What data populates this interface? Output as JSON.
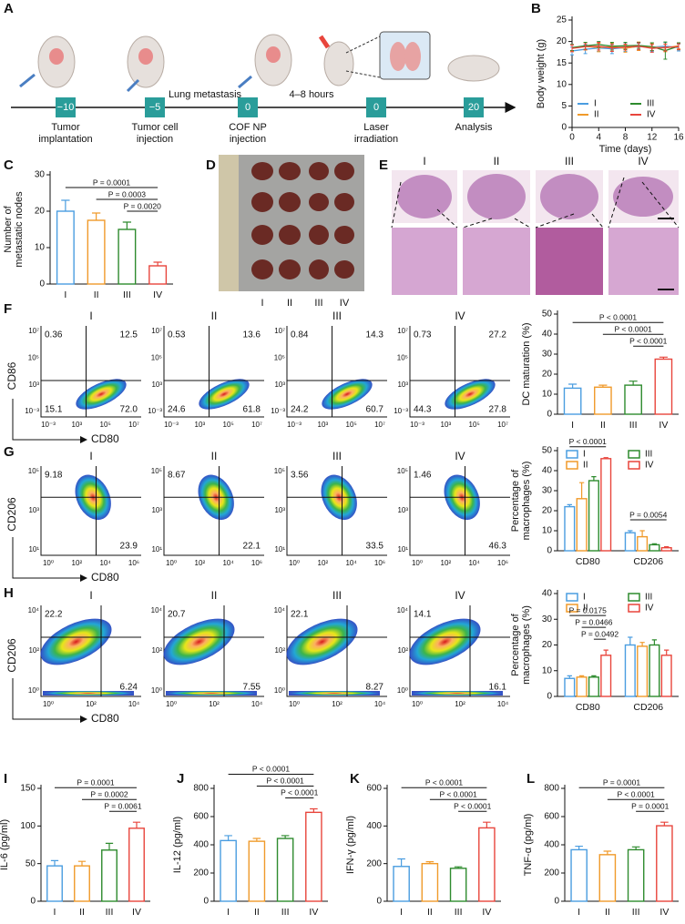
{
  "panel_labels": [
    "A",
    "B",
    "C",
    "D",
    "E",
    "F",
    "G",
    "H",
    "I",
    "J",
    "K",
    "L"
  ],
  "timeline": {
    "events": [
      {
        "day": "−10",
        "label": [
          "Tumor",
          "implantation"
        ]
      },
      {
        "day": "−5",
        "label": [
          "Tumor cell",
          "injection"
        ]
      },
      {
        "day": "0",
        "label": [
          "COF NP",
          "injection"
        ]
      },
      {
        "day": "0",
        "label": [
          "Laser",
          "irradiation"
        ]
      },
      {
        "day": "20",
        "label": [
          "Analysis"
        ]
      }
    ],
    "notes": [
      "Lung metastasis",
      "4–8 hours"
    ]
  },
  "photo_d": {
    "groups": [
      "I",
      "II",
      "III",
      "IV"
    ]
  },
  "histology_e": {
    "groups": [
      "I",
      "II",
      "III",
      "IV"
    ]
  },
  "flow": [
    {
      "groups": [
        "I",
        "II",
        "III",
        "IV"
      ],
      "x_label": "CD80",
      "y_label": "CD86",
      "xticks": [
        "10⁻³",
        "10³",
        "10⁵",
        "10⁷"
      ],
      "yticks": [
        "10⁻³",
        "10³",
        "10⁵",
        "10⁷"
      ],
      "quadrants": [
        [
          "0.36",
          "12.5",
          "15.1",
          "72.0"
        ],
        [
          "0.53",
          "13.6",
          "24.6",
          "61.8"
        ],
        [
          "0.84",
          "14.3",
          "24.2",
          "60.7"
        ],
        [
          "0.73",
          "27.2",
          "44.3",
          "27.8"
        ]
      ]
    },
    {
      "groups": [
        "I",
        "II",
        "III",
        "IV"
      ],
      "x_label": "CD80",
      "y_label": "CD206",
      "xticks": [
        "10⁰",
        "10²",
        "10⁴",
        "10⁶"
      ],
      "yticks": [
        "10¹",
        "10³",
        "10⁵"
      ],
      "quadrants": [
        [
          "9.18",
          "23.9"
        ],
        [
          "8.67",
          "22.1"
        ],
        [
          "3.56",
          "33.5"
        ],
        [
          "1.46",
          "46.3"
        ]
      ]
    },
    {
      "groups": [
        "I",
        "II",
        "III",
        "IV"
      ],
      "x_label": "CD80",
      "y_label": "CD206",
      "xticks": [
        "10⁰",
        "10²",
        "10⁴"
      ],
      "yticks": [
        "10⁰",
        "10²",
        "10⁴"
      ],
      "quadrants": [
        [
          "22.2",
          "6.24"
        ],
        [
          "20.7",
          "7.55"
        ],
        [
          "22.1",
          "8.27"
        ],
        [
          "14.1",
          "16.1"
        ]
      ]
    }
  ],
  "chart_data": [
    {
      "type": "line",
      "x_label": "Time (days)",
      "y_label": [
        "Body weight (g)"
      ],
      "x": [
        0,
        2,
        4,
        6,
        8,
        10,
        12,
        14,
        16
      ],
      "xlim": [
        0,
        16
      ],
      "xticks": [
        0,
        4,
        8,
        12,
        16
      ],
      "ylim": [
        0,
        25
      ],
      "yticks": [
        0,
        5,
        10,
        15,
        20,
        25
      ],
      "series": [
        {
          "name": "I",
          "color": "#4a9de0",
          "values": [
            17.8,
            18.2,
            18.5,
            18.3,
            18.6,
            18.8,
            18.7,
            18.9,
            18.6
          ],
          "errors": [
            0.9,
            1.0,
            0.8,
            1.1,
            0.9,
            0.8,
            1.0,
            0.9,
            0.8
          ]
        },
        {
          "name": "II",
          "color": "#f09a2a",
          "values": [
            18.5,
            18.9,
            18.6,
            18.8,
            18.4,
            18.9,
            18.7,
            18.5,
            19.0
          ],
          "errors": [
            0.8,
            0.9,
            1.0,
            0.8,
            0.9,
            1.0,
            0.8,
            0.9,
            0.7
          ]
        },
        {
          "name": "III",
          "color": "#2e8b2e",
          "values": [
            18.6,
            19.0,
            19.3,
            18.9,
            19.0,
            19.1,
            18.8,
            17.9,
            18.9
          ],
          "errors": [
            0.7,
            0.8,
            0.7,
            0.9,
            0.8,
            0.7,
            0.9,
            2.0,
            0.8
          ]
        },
        {
          "name": "IV",
          "color": "#e8453c",
          "values": [
            18.4,
            18.8,
            18.9,
            18.5,
            18.7,
            18.9,
            18.4,
            18.6,
            18.8
          ],
          "errors": [
            0.8,
            0.7,
            0.9,
            0.8,
            0.7,
            0.8,
            0.9,
            0.8,
            0.7
          ]
        }
      ]
    },
    {
      "type": "bar",
      "y_label": [
        "Number of",
        "metastatic nodes"
      ],
      "categories": [
        "I",
        "II",
        "III",
        "IV"
      ],
      "values": [
        20,
        17.5,
        15,
        5
      ],
      "errors": [
        3,
        2,
        2,
        1
      ],
      "colors": [
        "#4a9de0",
        "#f09a2a",
        "#2e8b2e",
        "#e8453c"
      ],
      "ylim": [
        0,
        30
      ],
      "yticks": [
        0,
        10,
        20,
        30
      ],
      "annotations": [
        "P = 0.0001",
        "P = 0.0003",
        "P = 0.0020"
      ]
    },
    {
      "type": "bar",
      "y_label": [
        "DC maturation (%)"
      ],
      "categories": [
        "I",
        "II",
        "III",
        "IV"
      ],
      "values": [
        13,
        13.5,
        14.5,
        27.5
      ],
      "errors": [
        2,
        1,
        2,
        1
      ],
      "colors": [
        "#4a9de0",
        "#f09a2a",
        "#2e8b2e",
        "#e8453c"
      ],
      "ylim": [
        0,
        50
      ],
      "yticks": [
        0,
        10,
        20,
        30,
        40,
        50
      ],
      "annotations": [
        "P < 0.0001",
        "P < 0.0001",
        "P < 0.0001"
      ]
    },
    {
      "type": "bar",
      "y_label": [
        "Percentage of",
        "macrophages (%)"
      ],
      "categories": [
        "CD80",
        "CD206"
      ],
      "series": [
        {
          "name": "I",
          "color": "#4a9de0",
          "values": [
            22,
            9
          ],
          "errors": [
            1,
            1
          ]
        },
        {
          "name": "II",
          "color": "#f09a2a",
          "values": [
            26,
            7
          ],
          "errors": [
            8,
            3
          ]
        },
        {
          "name": "III",
          "color": "#2e8b2e",
          "values": [
            35,
            3
          ],
          "errors": [
            2,
            0.5
          ]
        },
        {
          "name": "IV",
          "color": "#e8453c",
          "values": [
            46,
            1.5
          ],
          "errors": [
            0.5,
            0.5
          ]
        }
      ],
      "ylim": [
        0,
        50
      ],
      "yticks": [
        0,
        10,
        20,
        30,
        40,
        50
      ],
      "annotations": [
        "P < 0.0001",
        "P = 0.0054"
      ]
    },
    {
      "type": "bar",
      "y_label": [
        "Percentage of",
        "macrophages (%)"
      ],
      "categories": [
        "CD80",
        "CD206"
      ],
      "series": [
        {
          "name": "I",
          "color": "#4a9de0",
          "values": [
            7,
            20
          ],
          "errors": [
            1,
            3
          ]
        },
        {
          "name": "II",
          "color": "#f09a2a",
          "values": [
            7.5,
            19.5
          ],
          "errors": [
            0.5,
            1.5
          ]
        },
        {
          "name": "III",
          "color": "#2e8b2e",
          "values": [
            7.5,
            20
          ],
          "errors": [
            0.5,
            2
          ]
        },
        {
          "name": "IV",
          "color": "#e8453c",
          "values": [
            16,
            16
          ],
          "errors": [
            2,
            2
          ]
        }
      ],
      "ylim": [
        0,
        40
      ],
      "yticks": [
        0,
        10,
        20,
        30,
        40
      ],
      "annotations": [
        "P = 0.0175",
        "P = 0.0466",
        "P = 0.0492"
      ]
    },
    {
      "type": "bar",
      "y_label": [
        "IL-6 (pg/ml)"
      ],
      "categories": [
        "I",
        "II",
        "III",
        "IV"
      ],
      "values": [
        47,
        47,
        68,
        97
      ],
      "errors": [
        7,
        6,
        9,
        8
      ],
      "colors": [
        "#4a9de0",
        "#f09a2a",
        "#2e8b2e",
        "#e8453c"
      ],
      "ylim": [
        0,
        150
      ],
      "yticks": [
        0,
        50,
        100,
        150
      ],
      "annotations": [
        "P = 0.0001",
        "P = 0.0002",
        "P = 0.0061"
      ]
    },
    {
      "type": "bar",
      "y_label": [
        "IL-12 (pg/ml)"
      ],
      "categories": [
        "I",
        "II",
        "III",
        "IV"
      ],
      "values": [
        430,
        425,
        445,
        630
      ],
      "errors": [
        35,
        20,
        20,
        25
      ],
      "colors": [
        "#4a9de0",
        "#f09a2a",
        "#2e8b2e",
        "#e8453c"
      ],
      "ylim": [
        0,
        800
      ],
      "yticks": [
        0,
        200,
        400,
        600,
        800
      ],
      "annotations": [
        "P < 0.0001",
        "P < 0.0001",
        "P < 0.0001"
      ]
    },
    {
      "type": "bar",
      "y_label": [
        "IFN-γ (pg/ml)"
      ],
      "categories": [
        "I",
        "II",
        "III",
        "IV"
      ],
      "values": [
        185,
        200,
        175,
        390
      ],
      "errors": [
        40,
        10,
        8,
        30
      ],
      "colors": [
        "#4a9de0",
        "#f09a2a",
        "#2e8b2e",
        "#e8453c"
      ],
      "ylim": [
        0,
        600
      ],
      "yticks": [
        0,
        200,
        400,
        600
      ],
      "annotations": [
        "P < 0.0001",
        "P < 0.0001",
        "P < 0.0001"
      ]
    },
    {
      "type": "bar",
      "y_label": [
        "TNF-α (pg/ml)"
      ],
      "categories": [
        "I",
        "II",
        "III",
        "IV"
      ],
      "values": [
        365,
        330,
        365,
        535
      ],
      "errors": [
        25,
        25,
        20,
        25
      ],
      "colors": [
        "#4a9de0",
        "#f09a2a",
        "#2e8b2e",
        "#e8453c"
      ],
      "ylim": [
        0,
        800
      ],
      "yticks": [
        0,
        200,
        400,
        600,
        800
      ],
      "annotations": [
        "P = 0.0001",
        "P < 0.0001",
        "P = 0.0001"
      ]
    }
  ]
}
